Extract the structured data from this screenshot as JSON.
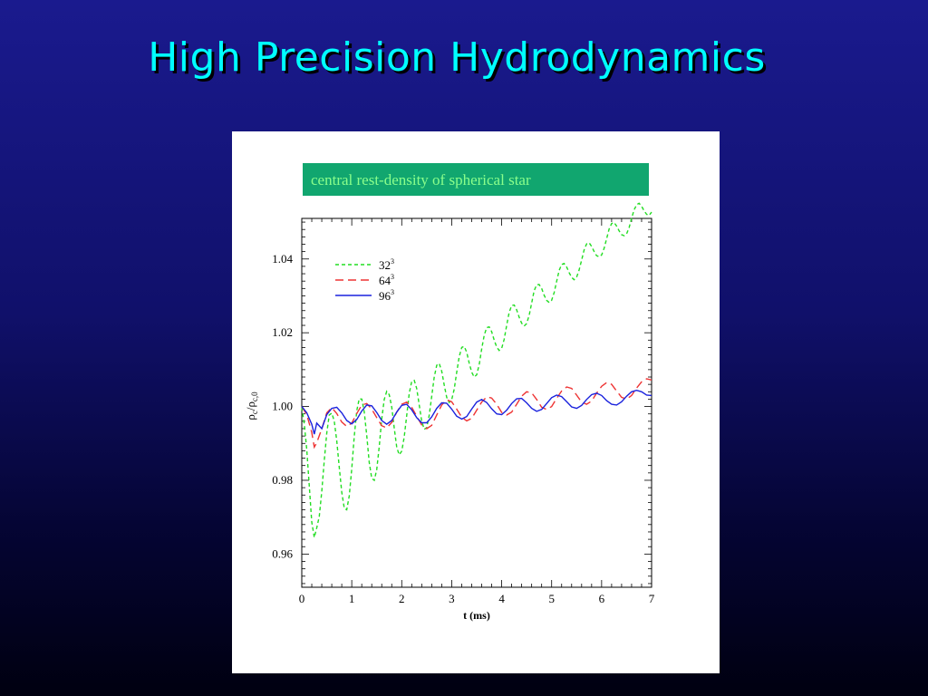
{
  "slide": {
    "title": "High Precision Hydrodynamics",
    "caption": "central rest-density of spherical star"
  },
  "chart_data": {
    "type": "line",
    "xlabel": "t (ms)",
    "ylabel": "ρc/ρc,0",
    "xlim": [
      0,
      7
    ],
    "ylim": [
      0.951,
      1.051
    ],
    "xticks": [
      0,
      1,
      2,
      3,
      4,
      5,
      6,
      7
    ],
    "yticks": [
      0.96,
      0.98,
      1.0,
      1.02,
      1.04
    ],
    "ytick_labels": [
      "0.96",
      "0.98",
      "1.00",
      "1.02",
      "1.04"
    ],
    "grid": false,
    "legend_position": "top-left",
    "series": [
      {
        "name": "32³",
        "label_base": "32",
        "label_sup": "3",
        "color": "#22dd22",
        "dash": "4,3",
        "x": [
          0,
          0.05,
          0.1,
          0.15,
          0.2,
          0.25,
          0.3,
          0.35,
          0.4,
          0.45,
          0.5,
          0.55,
          0.6,
          0.65,
          0.7,
          0.75,
          0.8,
          0.85,
          0.9,
          0.95,
          1.0,
          1.05,
          1.1,
          1.15,
          1.2,
          1.25,
          1.3,
          1.35,
          1.4,
          1.45,
          1.5,
          1.55,
          1.6,
          1.65,
          1.7,
          1.75,
          1.8,
          1.85,
          1.9,
          1.95,
          2.0,
          2.05,
          2.1,
          2.15,
          2.2,
          2.25,
          2.3,
          2.35,
          2.4,
          2.45,
          2.5,
          2.55,
          2.6,
          2.65,
          2.7,
          2.75,
          2.8,
          2.85,
          2.9,
          2.95,
          3.0,
          3.05,
          3.1,
          3.15,
          3.2,
          3.25,
          3.3,
          3.35,
          3.4,
          3.45,
          3.5,
          3.55,
          3.6,
          3.65,
          3.7,
          3.75,
          3.8,
          3.85,
          3.9,
          3.95,
          4.0,
          4.05,
          4.1,
          4.15,
          4.2,
          4.25,
          4.3,
          4.35,
          4.4,
          4.45,
          4.5,
          4.55,
          4.6,
          4.65,
          4.7,
          4.75,
          4.8,
          4.85,
          4.9,
          4.95,
          5.0,
          5.05,
          5.1,
          5.15,
          5.2,
          5.25,
          5.3,
          5.35,
          5.4,
          5.45,
          5.5,
          5.55,
          5.6,
          5.65,
          5.7,
          5.75,
          5.8,
          5.85,
          5.9,
          5.95,
          6.0,
          6.05,
          6.1,
          6.15,
          6.2,
          6.25,
          6.3,
          6.35,
          6.4,
          6.45,
          6.5,
          6.55,
          6.6,
          6.65,
          6.7,
          6.75,
          6.8,
          6.85,
          6.9,
          6.95,
          7.0
        ],
        "y": [
          0.9998,
          0.9952,
          0.9883,
          0.9784,
          0.9687,
          0.9645,
          0.9671,
          0.9702,
          0.9771,
          0.9853,
          0.9929,
          0.9977,
          0.9982,
          0.9961,
          0.9907,
          0.9834,
          0.9768,
          0.9724,
          0.972,
          0.9758,
          0.983,
          0.9919,
          0.9989,
          1.0021,
          1.002,
          0.9986,
          0.9921,
          0.9849,
          0.9805,
          0.98,
          0.9829,
          0.9892,
          0.9966,
          1.0019,
          1.0041,
          1.0032,
          0.9998,
          0.9942,
          0.9889,
          0.9869,
          0.9879,
          0.9917,
          0.9976,
          1.0036,
          1.0068,
          1.0071,
          1.0049,
          1.0004,
          0.9961,
          0.9938,
          0.9943,
          0.9976,
          1.0028,
          1.0079,
          1.0112,
          1.0117,
          1.0096,
          1.0058,
          1.0025,
          1.0011,
          1.0018,
          1.0047,
          1.0092,
          1.0135,
          1.016,
          1.0163,
          1.0147,
          1.0118,
          1.0093,
          1.008,
          1.0086,
          1.0114,
          1.0156,
          1.0193,
          1.0214,
          1.0216,
          1.0203,
          1.018,
          1.0161,
          1.0152,
          1.0158,
          1.0182,
          1.022,
          1.0255,
          1.0274,
          1.0275,
          1.0262,
          1.0242,
          1.0226,
          1.0218,
          1.0225,
          1.0247,
          1.0281,
          1.0314,
          1.033,
          1.0331,
          1.032,
          1.0302,
          1.0288,
          1.0282,
          1.0288,
          1.0309,
          1.0339,
          1.0369,
          1.0385,
          1.0388,
          1.0378,
          1.0363,
          1.035,
          1.0344,
          1.0351,
          1.037,
          1.0397,
          1.0425,
          1.0441,
          1.0444,
          1.0434,
          1.042,
          1.0409,
          1.0406,
          1.0411,
          1.0429,
          1.0455,
          1.0481,
          1.0496,
          1.0499,
          1.0489,
          1.0476,
          1.0466,
          1.0463,
          1.0468,
          1.0485,
          1.051,
          1.0533,
          1.0547,
          1.0551,
          1.0543,
          1.0531,
          1.0521,
          1.0518,
          1.0527
        ]
      },
      {
        "name": "64³",
        "label_base": "64",
        "label_sup": "3",
        "color": "#ee3333",
        "dash": "9,5",
        "x": [
          0,
          0.1,
          0.2,
          0.25,
          0.3,
          0.4,
          0.5,
          0.6,
          0.7,
          0.8,
          0.9,
          1.0,
          1.1,
          1.2,
          1.3,
          1.4,
          1.5,
          1.6,
          1.7,
          1.8,
          1.9,
          2.0,
          2.1,
          2.2,
          2.3,
          2.4,
          2.5,
          2.6,
          2.7,
          2.8,
          2.9,
          3.0,
          3.1,
          3.2,
          3.3,
          3.4,
          3.5,
          3.6,
          3.7,
          3.8,
          3.9,
          4.0,
          4.1,
          4.2,
          4.3,
          4.4,
          4.5,
          4.6,
          4.7,
          4.8,
          4.9,
          5.0,
          5.1,
          5.2,
          5.3,
          5.4,
          5.5,
          5.6,
          5.7,
          5.8,
          5.9,
          6.0,
          6.1,
          6.2,
          6.3,
          6.4,
          6.5,
          6.6,
          6.7,
          6.8,
          6.9,
          7.0
        ],
        "y": [
          1.0,
          0.9978,
          0.993,
          0.989,
          0.9902,
          0.994,
          0.9983,
          0.9997,
          0.9981,
          0.9958,
          0.9946,
          0.9955,
          0.9981,
          1.0004,
          1.0008,
          0.9993,
          0.997,
          0.9948,
          0.9942,
          0.9957,
          0.9985,
          1.0006,
          1.0012,
          0.9998,
          0.9974,
          0.995,
          0.994,
          0.9949,
          0.9977,
          1.0004,
          1.0018,
          1.0013,
          0.9993,
          0.9971,
          0.9961,
          0.9968,
          0.999,
          1.0012,
          1.0026,
          1.0023,
          1.0006,
          0.9984,
          0.9977,
          0.9985,
          1.0006,
          1.0028,
          1.004,
          1.0037,
          1.0019,
          0.9998,
          0.9992,
          1.0,
          1.0022,
          1.0042,
          1.0053,
          1.0049,
          1.0031,
          1.0012,
          1.0006,
          1.0015,
          1.0036,
          1.0055,
          1.0065,
          1.006,
          1.0042,
          1.0025,
          1.002,
          1.003,
          1.005,
          1.0067,
          1.0075,
          1.0072
        ]
      },
      {
        "name": "96³",
        "label_base": "96",
        "label_sup": "3",
        "color": "#1a22dd",
        "dash": "",
        "x": [
          0,
          0.1,
          0.2,
          0.25,
          0.3,
          0.4,
          0.5,
          0.6,
          0.7,
          0.8,
          0.9,
          1.0,
          1.1,
          1.2,
          1.3,
          1.4,
          1.5,
          1.6,
          1.7,
          1.8,
          1.9,
          2.0,
          2.1,
          2.2,
          2.3,
          2.4,
          2.5,
          2.6,
          2.7,
          2.8,
          2.9,
          3.0,
          3.1,
          3.2,
          3.3,
          3.4,
          3.5,
          3.6,
          3.7,
          3.8,
          3.9,
          4.0,
          4.1,
          4.2,
          4.3,
          4.4,
          4.5,
          4.6,
          4.7,
          4.8,
          4.9,
          5.0,
          5.1,
          5.2,
          5.3,
          5.4,
          5.5,
          5.6,
          5.7,
          5.8,
          5.9,
          6.0,
          6.1,
          6.2,
          6.3,
          6.4,
          6.5,
          6.6,
          6.7,
          6.8,
          6.9,
          7.0
        ],
        "y": [
          1.0,
          0.9983,
          0.9952,
          0.9925,
          0.9955,
          0.994,
          0.9978,
          0.9995,
          0.9998,
          0.9983,
          0.9962,
          0.9953,
          0.9965,
          0.9988,
          1.0004,
          1.0002,
          0.9984,
          0.9962,
          0.9952,
          0.9962,
          0.9985,
          1.0003,
          1.0006,
          0.9991,
          0.997,
          0.9956,
          0.9956,
          0.9972,
          0.9995,
          1.001,
          1.0009,
          0.9993,
          0.9974,
          0.9966,
          0.9973,
          0.9993,
          1.0012,
          1.0019,
          1.0011,
          0.9994,
          0.998,
          0.9978,
          0.999,
          1.0008,
          1.0021,
          1.0022,
          1.001,
          0.9995,
          0.9987,
          0.9992,
          1.0008,
          1.0024,
          1.0031,
          1.0027,
          1.0013,
          0.9999,
          0.9995,
          1.0003,
          1.0019,
          1.0032,
          1.0036,
          1.003,
          1.0016,
          1.0006,
          1.0004,
          1.0013,
          1.0028,
          1.004,
          1.0044,
          1.004,
          1.0031,
          1.003
        ]
      }
    ]
  }
}
